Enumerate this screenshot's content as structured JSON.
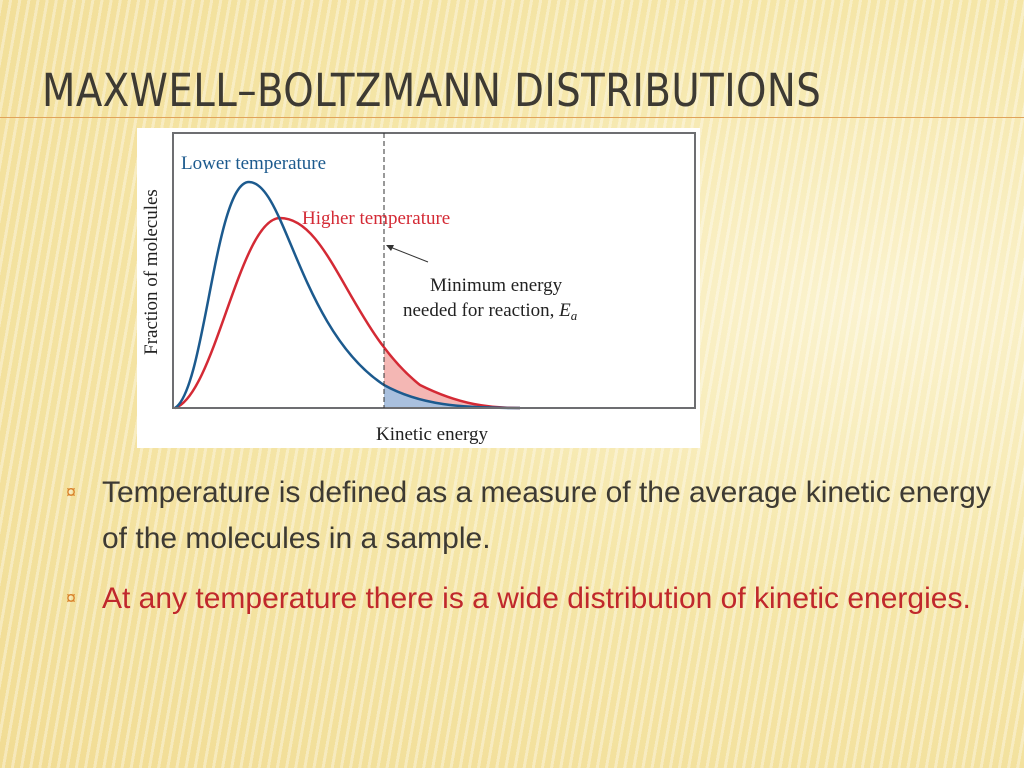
{
  "header": {
    "title": "Maxwell–Boltzmann Distributions"
  },
  "figure": {
    "lower_label": "Lower temperature",
    "higher_label": "Higher temperature",
    "annotation_line1": "Minimum energy",
    "annotation_line2": "needed for reaction, ",
    "ea_symbol": "E",
    "ea_subscript": "a",
    "y_axis_label": "Fraction of molecules",
    "x_axis_label": "Kinetic energy"
  },
  "bullets": [
    "Temperature is defined as a measure of the average kinetic energy of the molecules in a sample.",
    "At any temperature there is a wide distribution of kinetic energies."
  ]
}
